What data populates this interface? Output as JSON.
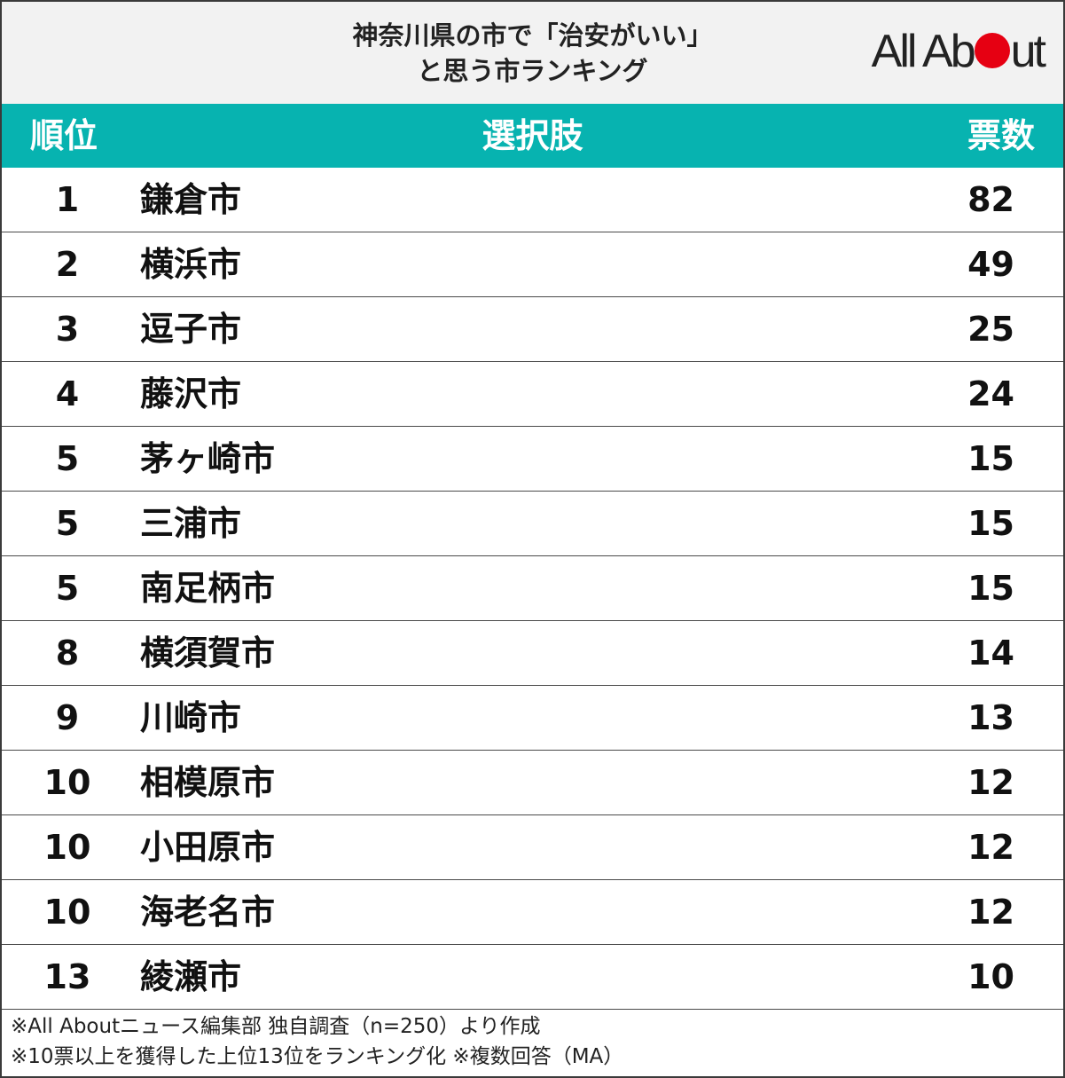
{
  "header": {
    "title_line1": "神奈川県の市で「治安がいい」",
    "title_line2": "と思う市ランキング",
    "logo_left": "All Ab",
    "logo_right": "ut",
    "logo_dot_color": "#e60012"
  },
  "table": {
    "columns": [
      "順位",
      "選択肢",
      "票数"
    ],
    "header_color": "#07b3b0",
    "rows": [
      {
        "rank": "1",
        "name": "鎌倉市",
        "votes": "82"
      },
      {
        "rank": "2",
        "name": "横浜市",
        "votes": "49"
      },
      {
        "rank": "3",
        "name": "逗子市",
        "votes": "25"
      },
      {
        "rank": "4",
        "name": "藤沢市",
        "votes": "24"
      },
      {
        "rank": "5",
        "name": "茅ヶ崎市",
        "votes": "15"
      },
      {
        "rank": "5",
        "name": "三浦市",
        "votes": "15"
      },
      {
        "rank": "5",
        "name": "南足柄市",
        "votes": "15"
      },
      {
        "rank": "8",
        "name": "横須賀市",
        "votes": "14"
      },
      {
        "rank": "9",
        "name": "川崎市",
        "votes": "13"
      },
      {
        "rank": "10",
        "name": "相模原市",
        "votes": "12"
      },
      {
        "rank": "10",
        "name": "小田原市",
        "votes": "12"
      },
      {
        "rank": "10",
        "name": "海老名市",
        "votes": "12"
      },
      {
        "rank": "13",
        "name": "綾瀬市",
        "votes": "10"
      }
    ]
  },
  "notes": [
    "※All Aboutニュース編集部 独自調査（n=250）より作成",
    "※10票以上を獲得した上位13位をランキング化 ※複数回答（MA）"
  ],
  "chart_data": {
    "type": "table",
    "title": "神奈川県の市で「治安がいい」と思う市ランキング",
    "columns": [
      "順位",
      "選択肢",
      "票数"
    ],
    "categories": [
      "鎌倉市",
      "横浜市",
      "逗子市",
      "藤沢市",
      "茅ヶ崎市",
      "三浦市",
      "南足柄市",
      "横須賀市",
      "川崎市",
      "相模原市",
      "小田原市",
      "海老名市",
      "綾瀬市"
    ],
    "ranks": [
      1,
      2,
      3,
      4,
      5,
      5,
      5,
      8,
      9,
      10,
      10,
      10,
      13
    ],
    "values": [
      82,
      49,
      25,
      24,
      15,
      15,
      15,
      14,
      13,
      12,
      12,
      12,
      10
    ]
  }
}
